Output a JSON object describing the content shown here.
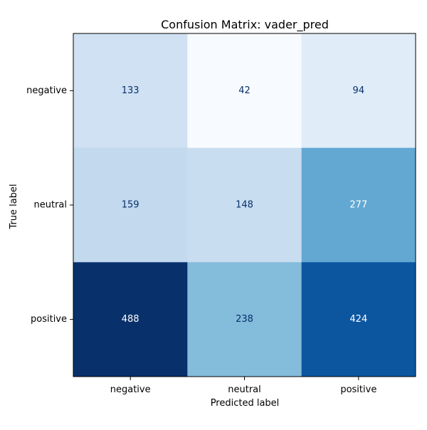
{
  "chart_data": {
    "type": "heatmap",
    "title": "Confusion Matrix: vader_pred",
    "xlabel": "Predicted label",
    "ylabel": "True label",
    "x_categories": [
      "negative",
      "neutral",
      "positive"
    ],
    "y_categories": [
      "negative",
      "neutral",
      "positive"
    ],
    "values": [
      [
        133,
        42,
        94
      ],
      [
        159,
        148,
        277
      ],
      [
        488,
        238,
        424
      ]
    ],
    "colormap": "Blues",
    "value_range": [
      42,
      488
    ],
    "colorbar": false,
    "grid": false
  }
}
